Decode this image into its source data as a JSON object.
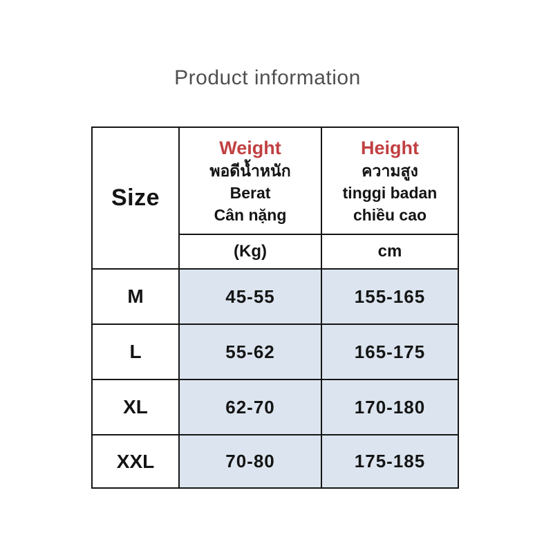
{
  "page": {
    "title": "Product information"
  },
  "colors": {
    "accent_red": "#c14042",
    "value_cell_blue": "#dce5ef",
    "border_black": "#141414",
    "title_gray": "#4f4f4f"
  },
  "table": {
    "size_header": "Size",
    "columns": [
      {
        "key": "weight",
        "title": "Weight",
        "labels": [
          "พอดีน้ำหนัก",
          "Berat",
          "Cân nặng"
        ],
        "unit": "(Kg)"
      },
      {
        "key": "height",
        "title": "Height",
        "labels": [
          "ความสูง",
          "tinggi badan",
          "chiều cao"
        ],
        "unit": "cm"
      }
    ],
    "rows": [
      {
        "size": "M",
        "weight": "45-55",
        "height": "155-165"
      },
      {
        "size": "L",
        "weight": "55-62",
        "height": "165-175"
      },
      {
        "size": "XL",
        "weight": "62-70",
        "height": "170-180"
      },
      {
        "size": "XXL",
        "weight": "70-80",
        "height": "175-185"
      }
    ]
  }
}
